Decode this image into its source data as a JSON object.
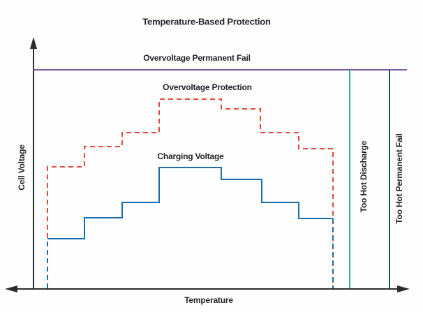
{
  "title": "Temperature-Based Protection",
  "axes": {
    "y_label": "Cell Voltage",
    "x_label": "Temperature"
  },
  "colors": {
    "text": "#23232b",
    "axis": "#2b2b2b",
    "overvoltage_permanent_fail": "#7c58a8",
    "overvoltage_protection": "#e2483d",
    "charging_voltage": "#1c6cae",
    "too_hot_discharge": "#2bba8a",
    "too_hot_permanent_fail": "#17593c"
  },
  "labels": {
    "overvoltage_permanent_fail": "Overvoltage Permanent Fail",
    "overvoltage_protection": "Overvoltage Protection",
    "charging_voltage": "Charging Voltage",
    "too_hot_discharge": "Too Hot Discharge",
    "too_hot_permanent_fail": "Too Hot Permanent Fail"
  },
  "chart_data": {
    "type": "line",
    "title": "Temperature-Based Protection",
    "xlabel": "Temperature",
    "ylabel": "Cell Voltage",
    "notes": "Conceptual chart: axes have no numeric ticks or gridlines; coordinates below are canvas pixel positions (y increases downward).",
    "legend_position": "inline-labels",
    "grid": false,
    "series": [
      {
        "name": "Overvoltage Permanent Fail",
        "color": "#7c58a8",
        "width": 2,
        "segments": [
          {
            "style": "solid",
            "points": [
              [
                48,
                100
              ],
              [
                583,
                100
              ]
            ]
          }
        ]
      },
      {
        "name": "Overvoltage Protection",
        "color": "#e2483d",
        "width": 2,
        "segments": [
          {
            "style": "dashed",
            "points": [
              [
                68,
                413
              ],
              [
                68,
                239
              ],
              [
                121,
                239
              ],
              [
                121,
                210
              ],
              [
                175,
                210
              ],
              [
                175,
                190
              ],
              [
                228,
                190
              ],
              [
                228,
                142
              ],
              [
                317,
                142
              ],
              [
                317,
                156
              ],
              [
                373,
                156
              ],
              [
                373,
                190
              ],
              [
                428,
                190
              ],
              [
                428,
                213
              ],
              [
                477,
                213
              ],
              [
                477,
                413
              ]
            ]
          }
        ]
      },
      {
        "name": "Charging Voltage",
        "color": "#1c6cae",
        "width": 2,
        "segments": [
          {
            "style": "dashed",
            "points": [
              [
                68,
                413
              ],
              [
                68,
                342
              ]
            ]
          },
          {
            "style": "solid",
            "points": [
              [
                68,
                342
              ],
              [
                121,
                342
              ],
              [
                121,
                312
              ],
              [
                175,
                312
              ],
              [
                175,
                290
              ],
              [
                228,
                290
              ],
              [
                228,
                240
              ],
              [
                317,
                240
              ],
              [
                317,
                257
              ],
              [
                375,
                257
              ],
              [
                375,
                290
              ],
              [
                428,
                290
              ],
              [
                428,
                313
              ],
              [
                477,
                313
              ]
            ]
          },
          {
            "style": "dashed",
            "points": [
              [
                477,
                313
              ],
              [
                477,
                413
              ]
            ]
          }
        ]
      },
      {
        "name": "Too Hot Discharge",
        "color": "#2bba8a",
        "width": 2,
        "segments": [
          {
            "style": "solid",
            "points": [
              [
                501,
                100
              ],
              [
                501,
                413
              ]
            ]
          }
        ]
      },
      {
        "name": "Too Hot Permanent Fail",
        "color": "#17593c",
        "width": 2,
        "segments": [
          {
            "style": "solid",
            "points": [
              [
                558,
                100
              ],
              [
                558,
                413
              ]
            ]
          }
        ]
      }
    ]
  }
}
